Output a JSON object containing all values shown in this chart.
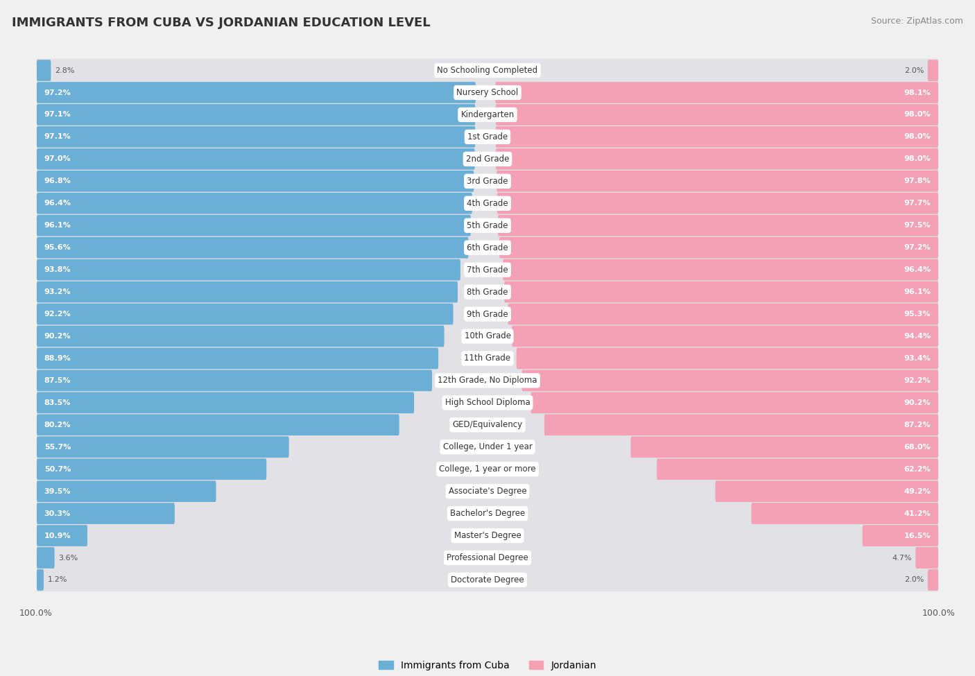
{
  "title": "IMMIGRANTS FROM CUBA VS JORDANIAN EDUCATION LEVEL",
  "source": "Source: ZipAtlas.com",
  "categories": [
    "No Schooling Completed",
    "Nursery School",
    "Kindergarten",
    "1st Grade",
    "2nd Grade",
    "3rd Grade",
    "4th Grade",
    "5th Grade",
    "6th Grade",
    "7th Grade",
    "8th Grade",
    "9th Grade",
    "10th Grade",
    "11th Grade",
    "12th Grade, No Diploma",
    "High School Diploma",
    "GED/Equivalency",
    "College, Under 1 year",
    "College, 1 year or more",
    "Associate's Degree",
    "Bachelor's Degree",
    "Master's Degree",
    "Professional Degree",
    "Doctorate Degree"
  ],
  "cuba_values": [
    2.8,
    97.2,
    97.1,
    97.1,
    97.0,
    96.8,
    96.4,
    96.1,
    95.6,
    93.8,
    93.2,
    92.2,
    90.2,
    88.9,
    87.5,
    83.5,
    80.2,
    55.7,
    50.7,
    39.5,
    30.3,
    10.9,
    3.6,
    1.2
  ],
  "jordan_values": [
    2.0,
    98.1,
    98.0,
    98.0,
    98.0,
    97.8,
    97.7,
    97.5,
    97.2,
    96.4,
    96.1,
    95.3,
    94.4,
    93.4,
    92.2,
    90.2,
    87.2,
    68.0,
    62.2,
    49.2,
    41.2,
    16.5,
    4.7,
    2.0
  ],
  "cuba_color": "#6baed6",
  "jordan_color": "#f4a0b5",
  "bg_color": "#f0f0f0",
  "row_bg_color": "#e2e2e6",
  "legend_cuba": "Immigrants from Cuba",
  "legend_jordan": "Jordanian",
  "axis_label_left": "100.0%",
  "axis_label_right": "100.0%"
}
